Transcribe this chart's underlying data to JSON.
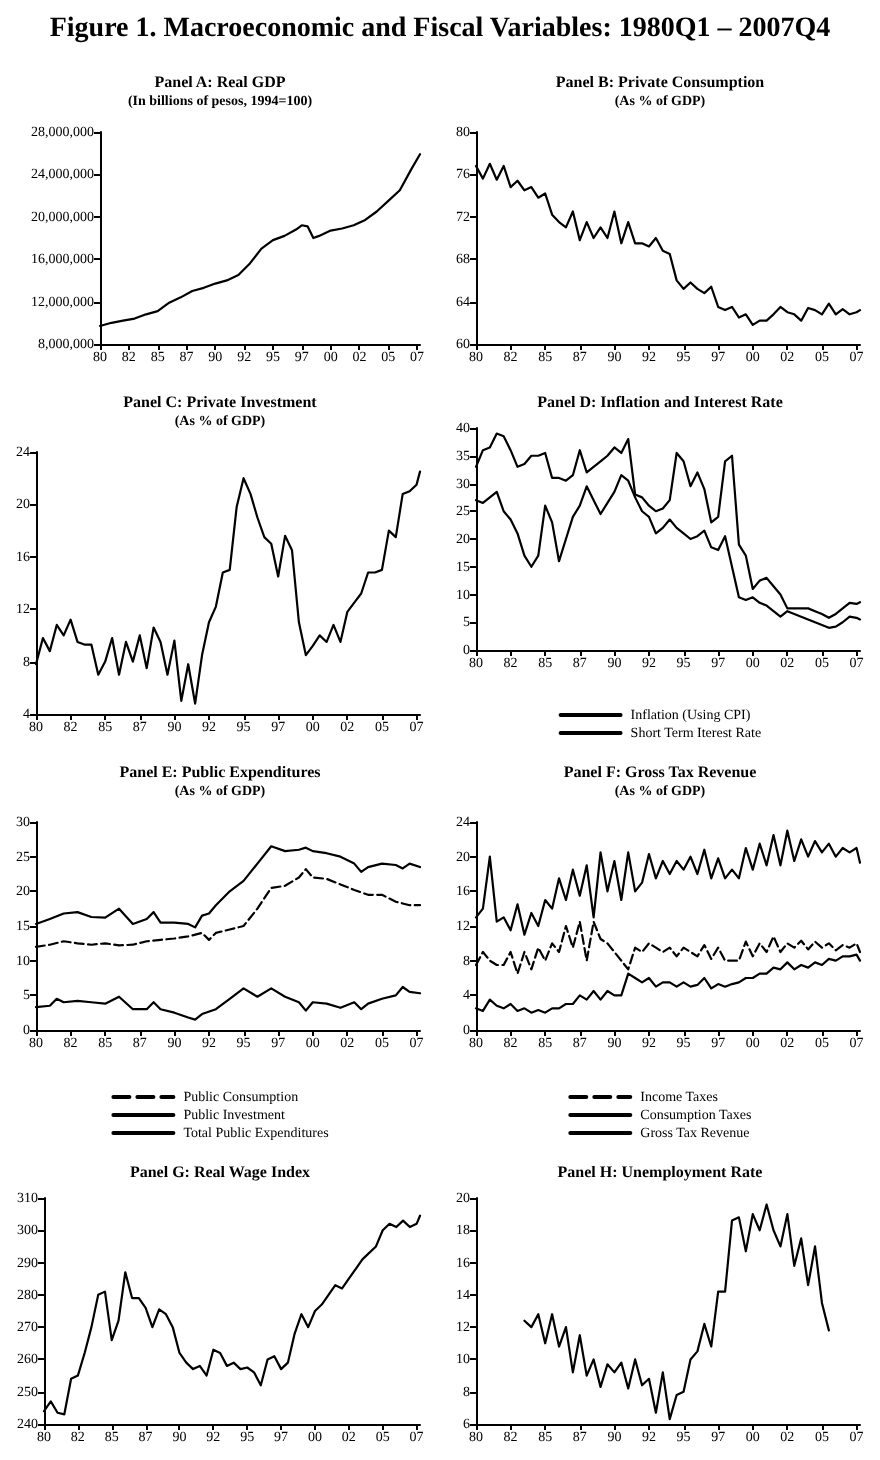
{
  "chart_data": [
    {
      "type": "line",
      "title": "Panel A: Real GDP",
      "subtitle": "(In billions of pesos, 1994=100)",
      "annotations": [
        "Figure 1. Macroeconomic and Fiscal Variables: 1980Q1 – 2007Q4"
      ],
      "marker": "none",
      "grid": false,
      "legend": false,
      "x": [
        "1980-01",
        "1981-01",
        "1982-01",
        "1983-01",
        "1984-01",
        "1985-01",
        "1986-01",
        "1987-01",
        "1988-01",
        "1989-01",
        "1990-01",
        "1991-01",
        "1992-01",
        "1993-01",
        "1994-01",
        "1995-01",
        "1996-01",
        "1997-01",
        "1997-07",
        "1998-01",
        "1998-07",
        "1999-01",
        "2000-01",
        "2001-01",
        "2002-01",
        "2003-01",
        "2004-01",
        "2005-01",
        "2006-01",
        "2007-01",
        "2007-10"
      ],
      "xlim": [
        "1980-01",
        "2007-10"
      ],
      "xticks": [
        {
          "value": "1980-01",
          "label": "80"
        },
        {
          "value": "1982-07",
          "label": "82"
        },
        {
          "value": "1985-01",
          "label": "85"
        },
        {
          "value": "1987-07",
          "label": "87"
        },
        {
          "value": "1990-01",
          "label": "90"
        },
        {
          "value": "1992-07",
          "label": "92"
        },
        {
          "value": "1995-01",
          "label": "95"
        },
        {
          "value": "1997-07",
          "label": "97"
        },
        {
          "value": "2000-01",
          "label": "00"
        },
        {
          "value": "2002-07",
          "label": "02"
        },
        {
          "value": "2005-01",
          "label": "05"
        },
        {
          "value": "2007-07",
          "label": "07"
        }
      ],
      "ylim": [
        8000000,
        28000000
      ],
      "yticks": [
        {
          "value": 8000000,
          "label": "8,000,000"
        },
        {
          "value": 12000000,
          "label": "12,000,000"
        },
        {
          "value": 16000000,
          "label": "16,000,000"
        },
        {
          "value": 20000000,
          "label": "20,000,000"
        },
        {
          "value": 24000000,
          "label": "24,000,000"
        },
        {
          "value": 28000000,
          "label": "28,000,000"
        }
      ],
      "series": [
        {
          "color": "#000000",
          "values": [
            9700000,
            10000000,
            10200000,
            10400000,
            10800000,
            11100000,
            11900000,
            12400000,
            13000000,
            13300000,
            13700000,
            14000000,
            14500000,
            15600000,
            17000000,
            17800000,
            18200000,
            18800000,
            19200000,
            19100000,
            18000000,
            18200000,
            18700000,
            18900000,
            19200000,
            19700000,
            20500000,
            21500000,
            22500000,
            24500000,
            25900000
          ]
        }
      ]
    },
    {
      "type": "line",
      "title": "Panel B: Private Consumption",
      "subtitle": "(As % of GDP)",
      "marker": "none",
      "grid": false,
      "legend": false,
      "x": [
        "1980-01",
        "1980-07",
        "1981-01",
        "1981-07",
        "1982-01",
        "1982-07",
        "1983-01",
        "1983-07",
        "1984-01",
        "1984-07",
        "1985-01",
        "1985-07",
        "1986-01",
        "1986-07",
        "1987-01",
        "1987-07",
        "1988-01",
        "1988-07",
        "1989-01",
        "1989-07",
        "1990-01",
        "1990-07",
        "1991-01",
        "1991-07",
        "1992-01",
        "1992-07",
        "1993-01",
        "1993-07",
        "1994-01",
        "1994-07",
        "1995-01",
        "1995-07",
        "1996-01",
        "1996-07",
        "1997-01",
        "1997-07",
        "1998-01",
        "1998-07",
        "1999-01",
        "1999-07",
        "2000-01",
        "2000-07",
        "2001-01",
        "2001-07",
        "2002-01",
        "2002-07",
        "2003-01",
        "2003-07",
        "2004-01",
        "2004-07",
        "2005-01",
        "2005-07",
        "2006-01",
        "2006-07",
        "2007-01",
        "2007-07",
        "2007-10"
      ],
      "xlim": [
        "1980-01",
        "2007-10"
      ],
      "xticks": [
        {
          "value": "1980-01",
          "label": "80"
        },
        {
          "value": "1982-07",
          "label": "82"
        },
        {
          "value": "1985-01",
          "label": "85"
        },
        {
          "value": "1987-07",
          "label": "87"
        },
        {
          "value": "1990-01",
          "label": "90"
        },
        {
          "value": "1992-07",
          "label": "92"
        },
        {
          "value": "1995-01",
          "label": "95"
        },
        {
          "value": "1997-07",
          "label": "97"
        },
        {
          "value": "2000-01",
          "label": "00"
        },
        {
          "value": "2002-07",
          "label": "02"
        },
        {
          "value": "2005-01",
          "label": "05"
        },
        {
          "value": "2007-07",
          "label": "07"
        }
      ],
      "ylim": [
        60,
        80
      ],
      "yticks": [
        60,
        64,
        68,
        72,
        76,
        80
      ],
      "series": [
        {
          "color": "#000000",
          "values": [
            76.8,
            75.6,
            77.0,
            75.5,
            76.8,
            74.8,
            75.4,
            74.5,
            74.8,
            73.8,
            74.2,
            72.2,
            71.5,
            71.0,
            72.5,
            69.8,
            71.5,
            70.0,
            71.0,
            70.0,
            72.5,
            69.5,
            71.5,
            69.5,
            69.5,
            69.2,
            70.0,
            68.8,
            68.5,
            66.0,
            65.2,
            65.8,
            65.2,
            64.8,
            65.4,
            63.5,
            63.2,
            63.5,
            62.5,
            62.8,
            61.8,
            62.2,
            62.2,
            62.8,
            63.5,
            63.0,
            62.8,
            62.2,
            63.4,
            63.2,
            62.8,
            63.8,
            62.8,
            63.3,
            62.8,
            63.0,
            63.2
          ]
        }
      ]
    },
    {
      "type": "line",
      "title": "Panel C: Private Investment",
      "subtitle": "(As % of GDP)",
      "marker": "none",
      "grid": false,
      "legend": false,
      "x": [
        "1980-01",
        "1980-07",
        "1981-01",
        "1981-07",
        "1982-01",
        "1982-07",
        "1983-01",
        "1983-07",
        "1984-01",
        "1984-07",
        "1985-01",
        "1985-07",
        "1986-01",
        "1986-07",
        "1987-01",
        "1987-07",
        "1988-01",
        "1988-07",
        "1989-01",
        "1989-07",
        "1990-01",
        "1990-07",
        "1991-01",
        "1991-07",
        "1992-01",
        "1992-07",
        "1993-01",
        "1993-07",
        "1994-01",
        "1994-07",
        "1995-01",
        "1995-07",
        "1996-01",
        "1996-07",
        "1997-01",
        "1997-07",
        "1998-01",
        "1998-07",
        "1999-01",
        "1999-07",
        "2000-01",
        "2000-07",
        "2001-01",
        "2001-07",
        "2002-01",
        "2002-07",
        "2003-01",
        "2003-07",
        "2004-01",
        "2004-07",
        "2005-01",
        "2005-07",
        "2006-01",
        "2006-07",
        "2007-01",
        "2007-07",
        "2007-10"
      ],
      "xlim": [
        "1980-01",
        "2007-10"
      ],
      "xticks": [
        {
          "value": "1980-01",
          "label": "80"
        },
        {
          "value": "1982-07",
          "label": "82"
        },
        {
          "value": "1985-01",
          "label": "85"
        },
        {
          "value": "1987-07",
          "label": "87"
        },
        {
          "value": "1990-01",
          "label": "90"
        },
        {
          "value": "1992-07",
          "label": "92"
        },
        {
          "value": "1995-01",
          "label": "95"
        },
        {
          "value": "1997-07",
          "label": "97"
        },
        {
          "value": "2000-01",
          "label": "00"
        },
        {
          "value": "2002-07",
          "label": "02"
        },
        {
          "value": "2005-01",
          "label": "05"
        },
        {
          "value": "2007-07",
          "label": "07"
        }
      ],
      "ylim": [
        4,
        24
      ],
      "yticks": [
        4,
        8,
        12,
        16,
        20,
        24
      ],
      "series": [
        {
          "color": "#000000",
          "values": [
            7.8,
            9.8,
            8.8,
            10.8,
            10.0,
            11.2,
            9.5,
            9.3,
            9.3,
            7.0,
            8.0,
            9.8,
            7.0,
            9.5,
            8.0,
            10.0,
            7.5,
            10.6,
            9.5,
            7.0,
            9.6,
            5.0,
            7.8,
            4.8,
            8.5,
            11.0,
            12.2,
            14.8,
            15.0,
            19.8,
            22.0,
            20.8,
            19.0,
            17.5,
            17.0,
            14.5,
            17.6,
            16.5,
            11.0,
            8.5,
            9.2,
            10.0,
            9.5,
            10.8,
            9.5,
            11.8,
            12.5,
            13.2,
            14.8,
            14.8,
            15.0,
            18.0,
            17.5,
            20.8,
            21.0,
            21.5,
            22.5
          ]
        }
      ]
    },
    {
      "type": "line",
      "title": "Panel D: Inflation and Interest Rate",
      "marker": "none",
      "grid": false,
      "legend": "bottom",
      "x": [
        "1980-01",
        "1980-07",
        "1981-01",
        "1981-07",
        "1982-01",
        "1982-07",
        "1983-01",
        "1983-07",
        "1984-01",
        "1984-07",
        "1985-01",
        "1985-07",
        "1986-01",
        "1986-07",
        "1987-01",
        "1987-07",
        "1988-01",
        "1988-07",
        "1989-01",
        "1989-07",
        "1990-01",
        "1990-07",
        "1991-01",
        "1991-07",
        "1992-01",
        "1992-07",
        "1993-01",
        "1993-07",
        "1994-01",
        "1994-07",
        "1995-01",
        "1995-07",
        "1996-01",
        "1996-07",
        "1997-01",
        "1997-07",
        "1998-01",
        "1998-07",
        "1999-01",
        "1999-07",
        "2000-01",
        "2000-07",
        "2001-01",
        "2001-07",
        "2002-01",
        "2002-07",
        "2003-01",
        "2003-07",
        "2004-01",
        "2004-07",
        "2005-01",
        "2005-07",
        "2006-01",
        "2006-07",
        "2007-01",
        "2007-07",
        "2007-10"
      ],
      "xlim": [
        "1980-01",
        "2007-10"
      ],
      "xticks": [
        {
          "value": "1980-01",
          "label": "80"
        },
        {
          "value": "1982-07",
          "label": "82"
        },
        {
          "value": "1985-01",
          "label": "85"
        },
        {
          "value": "1987-07",
          "label": "87"
        },
        {
          "value": "1990-01",
          "label": "90"
        },
        {
          "value": "1992-07",
          "label": "92"
        },
        {
          "value": "1995-01",
          "label": "95"
        },
        {
          "value": "1997-07",
          "label": "97"
        },
        {
          "value": "2000-01",
          "label": "00"
        },
        {
          "value": "2002-07",
          "label": "02"
        },
        {
          "value": "2005-01",
          "label": "05"
        },
        {
          "value": "2007-07",
          "label": "07"
        }
      ],
      "ylim": [
        0,
        40
      ],
      "yticks": [
        0,
        5,
        10,
        15,
        20,
        25,
        30,
        35,
        40
      ],
      "series": [
        {
          "name": "Inflation (Using CPI)",
          "color": "#000000",
          "values": [
            27,
            26.5,
            27.5,
            28.5,
            25,
            23.5,
            21,
            17,
            15,
            17,
            26,
            23,
            16,
            20,
            24,
            26,
            29.5,
            27,
            24.5,
            26.5,
            28.5,
            31.5,
            30.5,
            27.5,
            25,
            24,
            21,
            22,
            23.5,
            22,
            21,
            20,
            20.5,
            21.5,
            18.5,
            18,
            20.5,
            15,
            9.5,
            9,
            9.5,
            8.5,
            8,
            7,
            6,
            7,
            6.5,
            6,
            5.5,
            5,
            4.5,
            4,
            4.2,
            5,
            6,
            5.8,
            5.5
          ]
        },
        {
          "name": "Short Term Iterest Rate",
          "color": "#000000",
          "values": [
            33,
            36,
            36.5,
            39,
            38.5,
            36,
            33,
            33.5,
            35,
            35,
            35.5,
            31,
            31,
            30.5,
            31.5,
            36,
            32,
            33,
            34,
            35,
            36.5,
            35.5,
            38,
            28,
            27.5,
            26,
            25,
            25.5,
            27,
            35.5,
            34,
            29.5,
            32,
            29,
            23,
            24,
            34,
            35,
            19,
            17,
            11,
            12.5,
            13,
            11.5,
            10,
            7.5,
            7.5,
            7.5,
            7.5,
            7,
            6.5,
            5.8,
            6.5,
            7.5,
            8.5,
            8.3,
            8.6
          ]
        }
      ]
    },
    {
      "type": "line",
      "title": "Panel E: Public Expenditures",
      "subtitle": "(As % of GDP)",
      "marker": "none",
      "grid": false,
      "legend": "bottom",
      "xlim": [
        "1980-01",
        "2007-10"
      ],
      "xticks": [
        {
          "value": "1980-01",
          "label": "80"
        },
        {
          "value": "1982-07",
          "label": "82"
        },
        {
          "value": "1985-01",
          "label": "85"
        },
        {
          "value": "1987-07",
          "label": "87"
        },
        {
          "value": "1990-01",
          "label": "90"
        },
        {
          "value": "1992-07",
          "label": "92"
        },
        {
          "value": "1995-01",
          "label": "95"
        },
        {
          "value": "1997-07",
          "label": "97"
        },
        {
          "value": "2000-01",
          "label": "00"
        },
        {
          "value": "2002-07",
          "label": "02"
        },
        {
          "value": "2005-01",
          "label": "05"
        },
        {
          "value": "2007-07",
          "label": "07"
        }
      ],
      "ylim": [
        0,
        30
      ],
      "yticks": [
        0,
        5,
        10,
        15,
        20,
        25,
        30
      ],
      "series": [
        {
          "name": "Public Consumption",
          "color": "#000000",
          "line_style": "dashed",
          "x": [
            "1980-01",
            "1981-01",
            "1982-01",
            "1983-01",
            "1984-01",
            "1985-01",
            "1986-01",
            "1987-01",
            "1988-01",
            "1989-01",
            "1990-01",
            "1991-01",
            "1992-01",
            "1992-07",
            "1993-01",
            "1994-01",
            "1995-01",
            "1996-01",
            "1997-01",
            "1998-01",
            "1999-01",
            "1999-07",
            "2000-01",
            "2001-01",
            "2002-01",
            "2003-01",
            "2004-01",
            "2005-01",
            "2006-01",
            "2007-01",
            "2007-10"
          ],
          "values": [
            12,
            12.3,
            12.8,
            12.5,
            12.3,
            12.5,
            12.2,
            12.3,
            12.8,
            13.0,
            13.2,
            13.5,
            14.0,
            13.0,
            14.0,
            14.5,
            15.0,
            17.5,
            20.5,
            20.8,
            22.0,
            23.2,
            22.0,
            21.8,
            21.0,
            20.2,
            19.5,
            19.5,
            18.5,
            18.0,
            18.0
          ]
        },
        {
          "name": "Public Investment",
          "color": "#000000",
          "x": [
            "1980-01",
            "1981-01",
            "1981-07",
            "1982-01",
            "1983-01",
            "1984-01",
            "1985-01",
            "1986-01",
            "1987-01",
            "1988-01",
            "1988-07",
            "1989-01",
            "1990-01",
            "1991-01",
            "1991-07",
            "1992-01",
            "1993-01",
            "1994-01",
            "1995-01",
            "1996-01",
            "1997-01",
            "1998-01",
            "1999-01",
            "1999-07",
            "2000-01",
            "2001-01",
            "2002-01",
            "2003-01",
            "2003-07",
            "2004-01",
            "2005-01",
            "2006-01",
            "2006-07",
            "2007-01",
            "2007-10"
          ],
          "values": [
            3.3,
            3.5,
            4.5,
            4.0,
            4.2,
            4.0,
            3.8,
            4.8,
            3.0,
            3.0,
            4.0,
            3.0,
            2.5,
            1.8,
            1.5,
            2.3,
            3.0,
            4.5,
            6.0,
            4.8,
            6.0,
            4.8,
            4.0,
            2.8,
            4.0,
            3.8,
            3.2,
            4.0,
            3.0,
            3.8,
            4.5,
            5.0,
            6.2,
            5.5,
            5.3
          ]
        },
        {
          "name": "Total Public Expenditures",
          "color": "#000000",
          "x": [
            "1980-01",
            "1981-01",
            "1982-01",
            "1983-01",
            "1984-01",
            "1985-01",
            "1986-01",
            "1987-01",
            "1988-01",
            "1988-07",
            "1989-01",
            "1990-01",
            "1991-01",
            "1991-07",
            "1992-01",
            "1992-07",
            "1993-01",
            "1994-01",
            "1995-01",
            "1996-01",
            "1997-01",
            "1998-01",
            "1999-01",
            "1999-07",
            "2000-01",
            "2001-01",
            "2002-01",
            "2003-01",
            "2003-07",
            "2004-01",
            "2005-01",
            "2006-01",
            "2006-07",
            "2007-01",
            "2007-10"
          ],
          "values": [
            15.3,
            16.0,
            16.8,
            17.0,
            16.3,
            16.2,
            17.5,
            15.3,
            16.0,
            17.0,
            15.5,
            15.5,
            15.3,
            14.8,
            16.5,
            16.8,
            18.0,
            20.0,
            21.5,
            24.0,
            26.5,
            25.8,
            26.0,
            26.3,
            25.8,
            25.5,
            25.0,
            24.0,
            22.8,
            23.5,
            24.0,
            23.8,
            23.3,
            24.0,
            23.5
          ]
        }
      ]
    },
    {
      "type": "line",
      "title": "Panel F: Gross Tax Revenue",
      "subtitle": "(As % of GDP)",
      "marker": "none",
      "grid": false,
      "legend": "bottom",
      "x": [
        "1980-01",
        "1980-07",
        "1981-01",
        "1981-07",
        "1982-01",
        "1982-07",
        "1983-01",
        "1983-07",
        "1984-01",
        "1984-07",
        "1985-01",
        "1985-07",
        "1986-01",
        "1986-07",
        "1987-01",
        "1987-07",
        "1988-01",
        "1988-07",
        "1989-01",
        "1989-07",
        "1990-01",
        "1990-07",
        "1991-01",
        "1991-07",
        "1992-01",
        "1992-07",
        "1993-01",
        "1993-07",
        "1994-01",
        "1994-07",
        "1995-01",
        "1995-07",
        "1996-01",
        "1996-07",
        "1997-01",
        "1997-07",
        "1998-01",
        "1998-07",
        "1999-01",
        "1999-07",
        "2000-01",
        "2000-07",
        "2001-01",
        "2001-07",
        "2002-01",
        "2002-07",
        "2003-01",
        "2003-07",
        "2004-01",
        "2004-07",
        "2005-01",
        "2005-07",
        "2006-01",
        "2006-07",
        "2007-01",
        "2007-07",
        "2007-10"
      ],
      "xlim": [
        "1980-01",
        "2007-10"
      ],
      "xticks": [
        {
          "value": "1980-01",
          "label": "80"
        },
        {
          "value": "1982-07",
          "label": "82"
        },
        {
          "value": "1985-01",
          "label": "85"
        },
        {
          "value": "1987-07",
          "label": "87"
        },
        {
          "value": "1990-01",
          "label": "90"
        },
        {
          "value": "1992-07",
          "label": "92"
        },
        {
          "value": "1995-01",
          "label": "95"
        },
        {
          "value": "1997-07",
          "label": "97"
        },
        {
          "value": "2000-01",
          "label": "00"
        },
        {
          "value": "2002-07",
          "label": "02"
        },
        {
          "value": "2005-01",
          "label": "05"
        },
        {
          "value": "2007-07",
          "label": "07"
        }
      ],
      "ylim": [
        0,
        24
      ],
      "yticks": [
        0,
        4,
        8,
        12,
        16,
        20,
        24
      ],
      "series": [
        {
          "name": "Income Taxes",
          "color": "#000000",
          "line_style": "dashed",
          "values": [
            7.5,
            9,
            8,
            7.5,
            7.5,
            9,
            6.5,
            9,
            7,
            9.5,
            8,
            10,
            9,
            12,
            9.5,
            12.5,
            8,
            12.5,
            10.5,
            10,
            9,
            8,
            7,
            9.5,
            9,
            10,
            9.5,
            9,
            9.5,
            8.5,
            9.5,
            9,
            8.5,
            9.8,
            8.2,
            9.5,
            8,
            8,
            8,
            10.2,
            8.5,
            10,
            9,
            10.8,
            9,
            10,
            9.5,
            10.3,
            9.3,
            10.2,
            9.5,
            10,
            9.2,
            9.8,
            9.5,
            10,
            9
          ]
        },
        {
          "name": "Consumption Taxes",
          "color": "#000000",
          "values": [
            2.5,
            2.2,
            3.5,
            2.8,
            2.5,
            3,
            2.2,
            2.5,
            2,
            2.3,
            2,
            2.5,
            2.5,
            3,
            3,
            4,
            3.5,
            4.5,
            3.5,
            4.5,
            4,
            4,
            6.5,
            6,
            5.5,
            6,
            5,
            5.5,
            5.5,
            5,
            5.5,
            5,
            5.2,
            6,
            4.8,
            5.3,
            5,
            5.3,
            5.5,
            6,
            6,
            6.5,
            6.5,
            7.2,
            7,
            7.8,
            7,
            7.5,
            7.2,
            7.8,
            7.5,
            8.2,
            8,
            8.5,
            8.5,
            8.7,
            8
          ]
        },
        {
          "name": "Gross Tax Revenue",
          "color": "#000000",
          "values": [
            13,
            14,
            20,
            12.5,
            13,
            11.5,
            14.5,
            11,
            13.5,
            12,
            15,
            14,
            17.5,
            15,
            18.5,
            15.5,
            19,
            13,
            20.5,
            16,
            19.5,
            15,
            20.5,
            16,
            17,
            20.3,
            17.5,
            19.5,
            18,
            19.5,
            18.5,
            20,
            18,
            20.8,
            17.5,
            19.8,
            17.5,
            18.5,
            17.5,
            21,
            18.5,
            21.5,
            19,
            22.5,
            19,
            23,
            19.5,
            22,
            20,
            21.8,
            20.5,
            21.5,
            20,
            21,
            20.5,
            21,
            19.3
          ]
        }
      ]
    },
    {
      "type": "line",
      "title": "Panel G: Real Wage Index",
      "marker": "none",
      "grid": false,
      "legend": false,
      "x": [
        "1980-01",
        "1980-07",
        "1981-01",
        "1981-07",
        "1982-01",
        "1982-07",
        "1983-01",
        "1983-07",
        "1984-01",
        "1984-07",
        "1985-01",
        "1985-07",
        "1986-01",
        "1986-07",
        "1987-01",
        "1987-07",
        "1988-01",
        "1988-07",
        "1989-01",
        "1989-07",
        "1990-01",
        "1990-07",
        "1991-01",
        "1991-07",
        "1992-01",
        "1992-07",
        "1993-01",
        "1993-07",
        "1994-01",
        "1994-07",
        "1995-01",
        "1995-07",
        "1996-01",
        "1996-07",
        "1997-01",
        "1997-07",
        "1998-01",
        "1998-07",
        "1999-01",
        "1999-07",
        "2000-01",
        "2000-07",
        "2001-01",
        "2001-07",
        "2002-01",
        "2002-07",
        "2003-01",
        "2003-07",
        "2004-01",
        "2004-07",
        "2005-01",
        "2005-07",
        "2006-01",
        "2006-07",
        "2007-01",
        "2007-07",
        "2007-10"
      ],
      "xlim": [
        "1980-01",
        "2007-10"
      ],
      "xticks": [
        {
          "value": "1980-01",
          "label": "80"
        },
        {
          "value": "1982-07",
          "label": "82"
        },
        {
          "value": "1985-01",
          "label": "85"
        },
        {
          "value": "1987-07",
          "label": "87"
        },
        {
          "value": "1990-01",
          "label": "90"
        },
        {
          "value": "1992-07",
          "label": "92"
        },
        {
          "value": "1995-01",
          "label": "95"
        },
        {
          "value": "1997-07",
          "label": "97"
        },
        {
          "value": "2000-01",
          "label": "00"
        },
        {
          "value": "2002-07",
          "label": "02"
        },
        {
          "value": "2005-01",
          "label": "05"
        },
        {
          "value": "2007-07",
          "label": "07"
        }
      ],
      "ylim": [
        240,
        310
      ],
      "yticks": [
        240,
        250,
        260,
        270,
        280,
        290,
        300,
        310
      ],
      "series": [
        {
          "color": "#000000",
          "values": [
            244,
            247,
            243.5,
            243,
            254,
            255,
            262,
            270,
            280,
            281,
            266,
            272,
            287,
            279,
            279,
            276,
            270,
            275.5,
            274,
            270,
            262,
            259,
            257,
            258,
            255,
            263,
            262,
            258,
            259,
            257,
            257.5,
            256,
            252,
            260,
            261,
            257,
            259,
            268,
            274,
            270,
            275,
            277,
            280,
            283,
            282,
            285,
            288,
            291,
            293,
            295,
            300,
            302,
            301,
            303,
            301,
            302,
            304.5
          ]
        }
      ]
    },
    {
      "type": "line",
      "title": "Panel H: Unemployment Rate",
      "marker": "none",
      "grid": false,
      "legend": false,
      "x": [
        "1983-07",
        "1984-01",
        "1984-07",
        "1985-01",
        "1985-07",
        "1986-01",
        "1986-07",
        "1987-01",
        "1987-07",
        "1988-01",
        "1988-07",
        "1989-01",
        "1989-07",
        "1990-01",
        "1990-07",
        "1991-01",
        "1991-07",
        "1992-01",
        "1992-07",
        "1993-01",
        "1993-07",
        "1994-01",
        "1994-07",
        "1995-01",
        "1995-07",
        "1996-01",
        "1996-07",
        "1997-01",
        "1997-07",
        "1998-01",
        "1998-07",
        "1999-01",
        "1999-07",
        "2000-01",
        "2000-07",
        "2001-01",
        "2001-07",
        "2002-01",
        "2002-07",
        "2003-01",
        "2003-07",
        "2004-01",
        "2004-07",
        "2005-01",
        "2005-07"
      ],
      "xlim": [
        "1980-01",
        "2007-10"
      ],
      "xticks": [
        {
          "value": "1980-01",
          "label": "80"
        },
        {
          "value": "1982-07",
          "label": "82"
        },
        {
          "value": "1985-01",
          "label": "85"
        },
        {
          "value": "1987-07",
          "label": "87"
        },
        {
          "value": "1990-01",
          "label": "90"
        },
        {
          "value": "1992-07",
          "label": "92"
        },
        {
          "value": "1995-01",
          "label": "95"
        },
        {
          "value": "1997-07",
          "label": "97"
        },
        {
          "value": "2000-01",
          "label": "00"
        },
        {
          "value": "2002-07",
          "label": "02"
        },
        {
          "value": "2005-01",
          "label": "05"
        },
        {
          "value": "2007-07",
          "label": "07"
        }
      ],
      "ylim": [
        6,
        20
      ],
      "yticks": [
        6,
        8,
        10,
        12,
        14,
        16,
        18,
        20
      ],
      "series": [
        {
          "color": "#000000",
          "values": [
            12.4,
            12.0,
            12.8,
            11.0,
            12.8,
            10.8,
            12.0,
            9.2,
            11.5,
            9.0,
            10.0,
            8.3,
            9.7,
            9.2,
            9.8,
            8.2,
            10.0,
            8.4,
            8.8,
            6.7,
            9.2,
            6.3,
            7.8,
            8.0,
            10.0,
            10.5,
            12.2,
            10.8,
            14.2,
            14.2,
            18.6,
            18.8,
            16.7,
            19.0,
            18.0,
            19.6,
            18.0,
            17.0,
            19.0,
            15.8,
            17.5,
            14.6,
            17.0,
            13.5,
            11.8
          ]
        }
      ]
    }
  ]
}
